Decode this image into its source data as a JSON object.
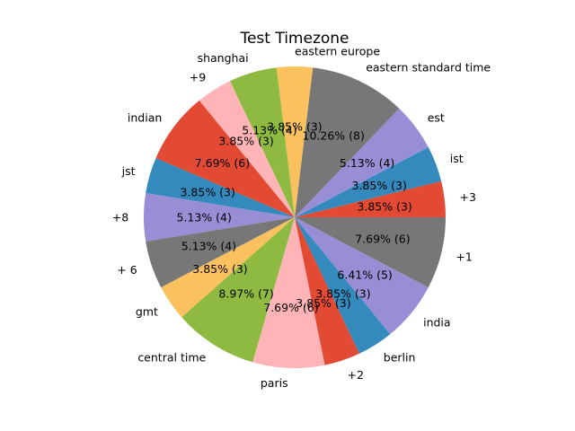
{
  "chart_data": {
    "type": "pie",
    "title": "Test Timezone",
    "start_angle_deg": 0,
    "direction": "counterclockwise",
    "slices": [
      {
        "label": "+3",
        "count": 3,
        "percent_label": "3.85%  (3)",
        "color": "#e24a33"
      },
      {
        "label": "ist",
        "count": 3,
        "percent_label": "3.85%  (3)",
        "color": "#348abd"
      },
      {
        "label": "est",
        "count": 4,
        "percent_label": "5.13%  (4)",
        "color": "#988ed5"
      },
      {
        "label": "eastern standard time",
        "count": 8,
        "percent_label": "10.26%  (8)",
        "color": "#777777"
      },
      {
        "label": "eastern europe",
        "count": 3,
        "percent_label": "3.85%  (3)",
        "color": "#fbc15e"
      },
      {
        "label": "shanghai",
        "count": 4,
        "percent_label": "5.13%  (4)",
        "color": "#8eba42"
      },
      {
        "label": "+9",
        "count": 3,
        "percent_label": "3.85%  (3)",
        "color": "#ffb5b8"
      },
      {
        "label": "indian",
        "count": 6,
        "percent_label": "7.69%  (6)",
        "color": "#e24a33"
      },
      {
        "label": "jst",
        "count": 3,
        "percent_label": "3.85%  (3)",
        "color": "#348abd"
      },
      {
        "label": "+8",
        "count": 4,
        "percent_label": "5.13%  (4)",
        "color": "#988ed5"
      },
      {
        "label": "+ 6",
        "count": 4,
        "percent_label": "5.13%  (4)",
        "color": "#777777"
      },
      {
        "label": "gmt",
        "count": 3,
        "percent_label": "3.85%  (3)",
        "color": "#fbc15e"
      },
      {
        "label": "central time",
        "count": 7,
        "percent_label": "8.97%  (7)",
        "color": "#8eba42"
      },
      {
        "label": "paris",
        "count": 6,
        "percent_label": "7.69%  (6)",
        "color": "#ffb5b8"
      },
      {
        "label": "+2",
        "count": 3,
        "percent_label": "3.85%  (3)",
        "color": "#e24a33"
      },
      {
        "label": "berlin",
        "count": 3,
        "percent_label": "3.85%  (3)",
        "color": "#348abd"
      },
      {
        "label": "india",
        "count": 5,
        "percent_label": "6.41%  (5)",
        "color": "#988ed5"
      },
      {
        "label": "+1",
        "count": 6,
        "percent_label": "7.69%  (6)",
        "color": "#777777"
      }
    ]
  }
}
